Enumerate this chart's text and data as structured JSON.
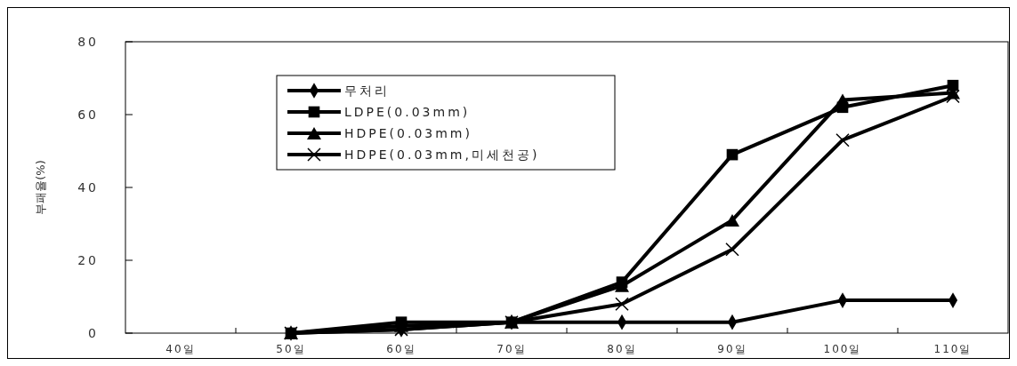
{
  "chart_data": {
    "type": "line",
    "ylabel": "부패율(%)",
    "categories": [
      "40일",
      "50일",
      "60일",
      "70일",
      "80일",
      "90일",
      "100일",
      "110일"
    ],
    "ylim": [
      0,
      80
    ],
    "yticks": [
      0,
      20,
      40,
      60,
      80
    ],
    "grid": false,
    "legend": "top left",
    "line_style": "solid",
    "series": [
      {
        "name": "무처리",
        "color": "#000000",
        "marker": "diamond",
        "values": [
          null,
          0,
          1,
          3,
          3,
          3,
          9,
          9
        ]
      },
      {
        "name": "LDPE(0.03mm)",
        "color": "#000000",
        "marker": "square",
        "values": [
          null,
          0,
          3,
          3,
          14,
          49,
          62,
          68
        ]
      },
      {
        "name": "HDPE(0.03mm)",
        "color": "#000000",
        "marker": "triangle",
        "values": [
          null,
          0,
          2,
          3,
          13,
          31,
          64,
          66
        ]
      },
      {
        "name": "HDPE(0.03mm,미세천공)",
        "color": "#000000",
        "marker": "cross",
        "values": [
          null,
          0,
          1,
          3,
          8,
          23,
          53,
          65
        ]
      }
    ]
  }
}
